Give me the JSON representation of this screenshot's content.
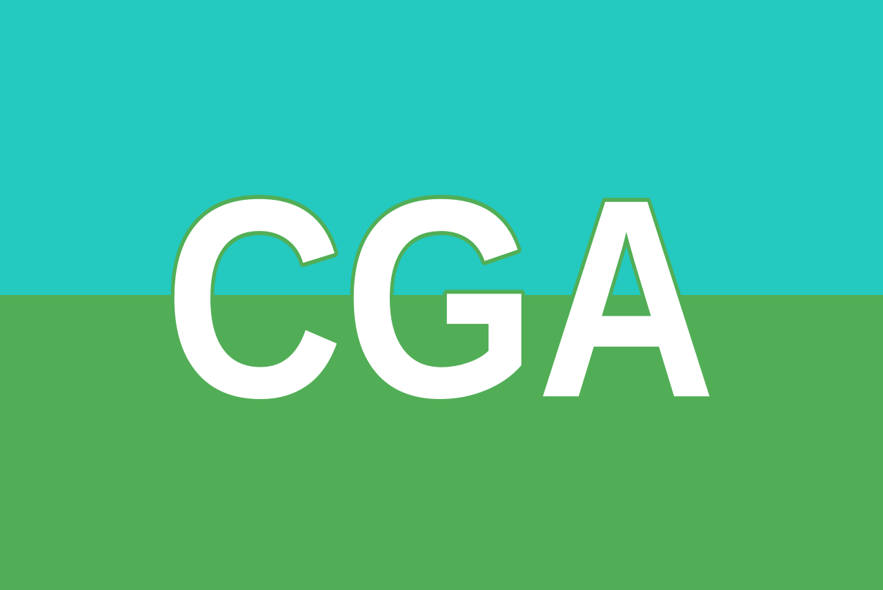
{
  "flag": {
    "text": "CGA",
    "colors": {
      "top": "#24c9bf",
      "bottom": "#52ae56",
      "letter_fill": "#ffffff",
      "letter_outline": "#52ae56"
    }
  }
}
